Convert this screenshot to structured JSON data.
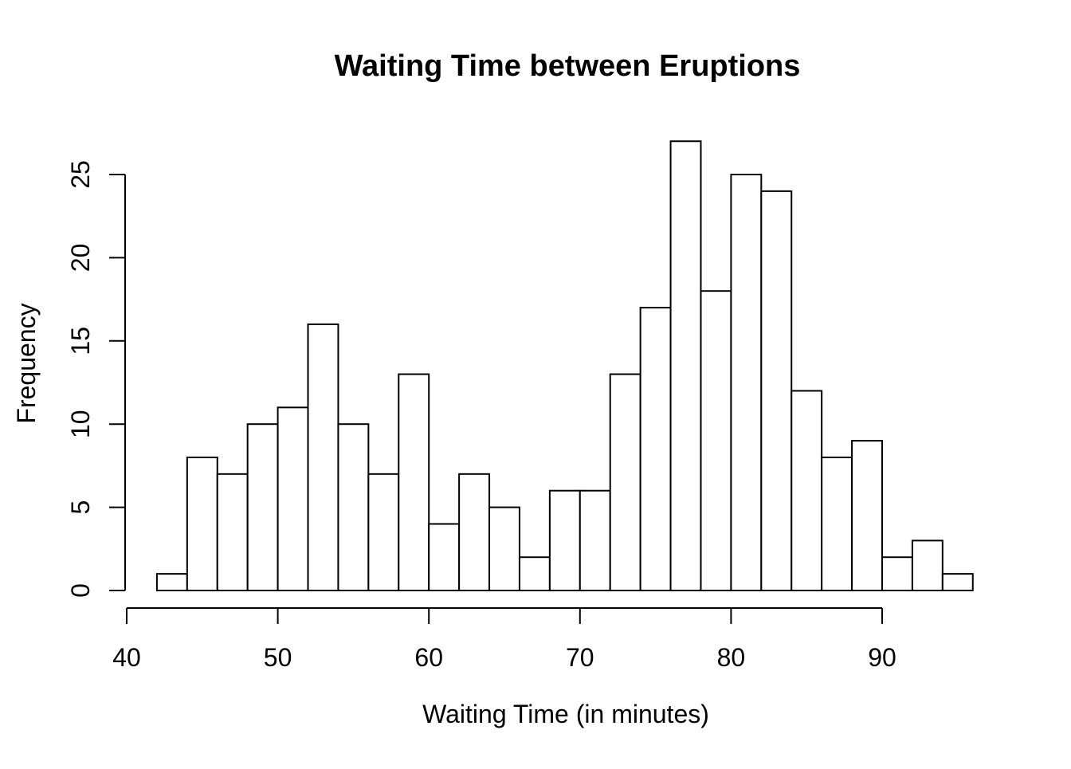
{
  "chart_data": {
    "type": "bar",
    "subtype": "histogram",
    "title": "Waiting Time between Eruptions",
    "xlabel": "Waiting Time (in minutes)",
    "ylabel": "Frequency",
    "bin_edges": [
      42,
      44,
      46,
      48,
      50,
      52,
      54,
      56,
      58,
      60,
      62,
      64,
      66,
      68,
      70,
      72,
      74,
      76,
      78,
      80,
      82,
      84,
      86,
      88,
      90,
      92,
      94,
      96
    ],
    "counts": [
      1,
      8,
      7,
      10,
      11,
      16,
      10,
      7,
      13,
      4,
      7,
      5,
      2,
      6,
      6,
      13,
      17,
      27,
      18,
      25,
      24,
      12,
      8,
      9,
      2,
      3,
      1
    ],
    "x_ticks": [
      40,
      50,
      60,
      70,
      80,
      90
    ],
    "y_ticks": [
      0,
      5,
      10,
      15,
      20,
      25
    ],
    "xlim": [
      40,
      96
    ],
    "ylim": [
      0,
      27
    ],
    "grid": false,
    "legend": false,
    "colors": {
      "background": "#ffffff",
      "bar_fill": "#ffffff",
      "bar_border": "#000000",
      "axis": "#000000",
      "text": "#000000"
    }
  }
}
